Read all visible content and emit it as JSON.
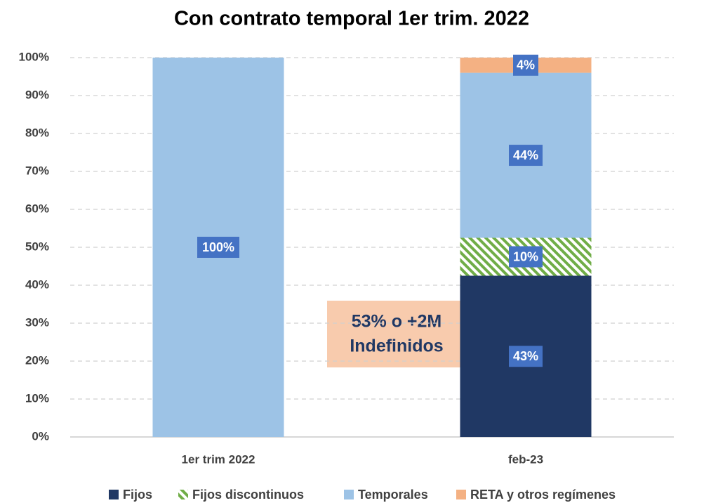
{
  "chart_data": {
    "type": "stacked_bar",
    "title": "Con contrato temporal 1er trim. 2022",
    "categories": [
      "1er trim 2022",
      "feb-23"
    ],
    "series": [
      {
        "name": "Fijos",
        "color": "#203864",
        "values": [
          0,
          42.5
        ],
        "value_labels": [
          null,
          "43%"
        ]
      },
      {
        "name": "Fijos discontinuos",
        "color": "#70ad47",
        "pattern": "hatch",
        "values": [
          0,
          10
        ],
        "value_labels": [
          null,
          "10%"
        ]
      },
      {
        "name": "Temporales",
        "color": "#9dc3e6",
        "values": [
          100,
          43.5
        ],
        "value_labels": [
          "100%",
          "44%"
        ]
      },
      {
        "name": "RETA y otros regímenes",
        "color": "#f4b183",
        "values": [
          0,
          4
        ],
        "value_labels": [
          null,
          "4%"
        ]
      }
    ],
    "ylim": [
      0,
      100
    ],
    "yticks": [
      {
        "value": 0,
        "label": "0%"
      },
      {
        "value": 10,
        "label": "10%"
      },
      {
        "value": 20,
        "label": "20%"
      },
      {
        "value": 30,
        "label": "30%"
      },
      {
        "value": 40,
        "label": "40%"
      },
      {
        "value": 50,
        "label": "50%"
      },
      {
        "value": 60,
        "label": "60%"
      },
      {
        "value": 70,
        "label": "70%"
      },
      {
        "value": 80,
        "label": "80%"
      },
      {
        "value": 90,
        "label": "90%"
      },
      {
        "value": 100,
        "label": "100%"
      }
    ],
    "grid": true,
    "legend": "bottom",
    "annotation": {
      "lines": [
        "53% o +2M",
        "Indefinidos"
      ]
    }
  }
}
